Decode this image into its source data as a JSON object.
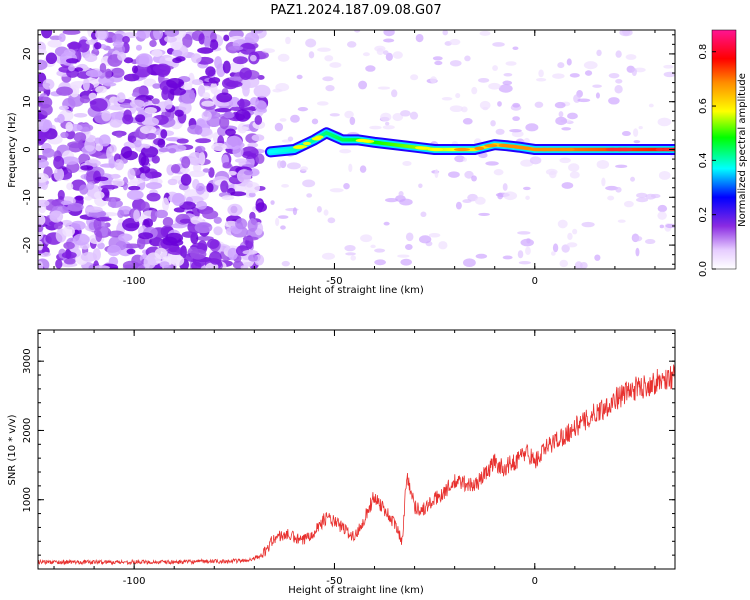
{
  "title": "PAZ1.2024.187.09.08.G07",
  "chart_data": [
    {
      "type": "heatmap",
      "xlabel": "Height of straight line (km)",
      "ylabel": "Frequency (Hz)",
      "xlim": [
        -124,
        35
      ],
      "ylim": [
        -25,
        25
      ],
      "xticks": [
        -100,
        -50,
        0
      ],
      "yticks": [
        -20,
        -10,
        0,
        10,
        20
      ],
      "colorbar": {
        "label": "Normalized spectral amplitude",
        "range": [
          0.0,
          0.88
        ],
        "ticks": [
          0.0,
          0.2,
          0.4,
          0.6,
          0.8
        ],
        "colors": [
          "#ffffff",
          "#d9b3ff",
          "#8a2be2",
          "#0000ff",
          "#00ffff",
          "#00ff00",
          "#ffff00",
          "#ff8c00",
          "#ff0000",
          "#ff1493"
        ]
      },
      "ridge": {
        "description_points_x": [
          -66,
          -60,
          -55,
          -52,
          -48,
          -44,
          -40,
          -35,
          -30,
          -25,
          -20,
          -15,
          -10,
          -7,
          -4,
          0,
          5,
          10,
          20,
          35
        ],
        "description_points_y": [
          -0.5,
          0,
          2,
          3.5,
          2,
          2.0,
          1.5,
          1.0,
          0.5,
          0,
          0,
          0,
          1,
          0.8,
          0.5,
          0,
          0,
          0,
          0,
          0
        ]
      }
    },
    {
      "type": "line",
      "xlabel": "Height of straight line (km)",
      "ylabel": "SNR (10 * v/v)",
      "xlim": [
        -124,
        35
      ],
      "ylim": [
        0,
        3450
      ],
      "xticks": [
        -100,
        -50,
        0
      ],
      "yticks": [
        1000,
        2000,
        3000
      ],
      "series": [
        {
          "color": "#e8312f",
          "x": [
            -124,
            -110,
            -100,
            -90,
            -80,
            -72,
            -68,
            -65,
            -62,
            -58,
            -55,
            -52,
            -48,
            -45,
            -42,
            -40,
            -38,
            -35,
            -33,
            -32,
            -30,
            -28,
            -25,
            -22,
            -20,
            -18,
            -15,
            -12,
            -10,
            -8,
            -5,
            -2,
            0,
            3,
            5,
            8,
            10,
            13,
            15,
            18,
            20,
            23,
            25,
            28,
            30,
            33,
            35
          ],
          "y": [
            100,
            100,
            100,
            100,
            110,
            120,
            200,
            450,
            500,
            400,
            550,
            750,
            600,
            450,
            800,
            1050,
            900,
            650,
            400,
            1400,
            900,
            850,
            1000,
            1150,
            1250,
            1250,
            1200,
            1400,
            1550,
            1450,
            1550,
            1700,
            1550,
            1750,
            1850,
            1950,
            2050,
            2150,
            2250,
            2350,
            2450,
            2550,
            2600,
            2650,
            2700,
            2750,
            2800
          ]
        }
      ]
    }
  ]
}
